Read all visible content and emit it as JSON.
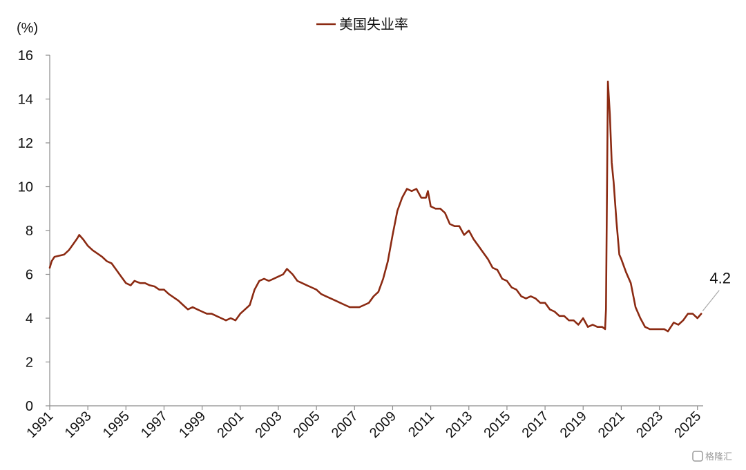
{
  "chart_data": {
    "type": "line",
    "y_unit_label": "(%)",
    "ylim": [
      0,
      16
    ],
    "y_ticks": [
      0,
      2,
      4,
      6,
      8,
      10,
      12,
      14,
      16
    ],
    "xlim": [
      1991,
      2025.3
    ],
    "x_tick_labels": [
      "1991",
      "1993",
      "1995",
      "1997",
      "1999",
      "2001",
      "2003",
      "2005",
      "2007",
      "2009",
      "2011",
      "2013",
      "2015",
      "2017",
      "2019",
      "2021",
      "2023",
      "2025"
    ],
    "legend_position": "top-center",
    "grid": false,
    "series": [
      {
        "name": "美国失业率",
        "color": "#8B2A12",
        "points": [
          [
            1991.0,
            6.3
          ],
          [
            1991.1,
            6.6
          ],
          [
            1991.25,
            6.8
          ],
          [
            1991.5,
            6.85
          ],
          [
            1991.75,
            6.9
          ],
          [
            1992.0,
            7.1
          ],
          [
            1992.25,
            7.4
          ],
          [
            1992.45,
            7.65
          ],
          [
            1992.55,
            7.8
          ],
          [
            1992.75,
            7.6
          ],
          [
            1993.0,
            7.3
          ],
          [
            1993.25,
            7.1
          ],
          [
            1993.5,
            6.95
          ],
          [
            1993.75,
            6.8
          ],
          [
            1994.0,
            6.6
          ],
          [
            1994.25,
            6.5
          ],
          [
            1994.5,
            6.2
          ],
          [
            1994.75,
            5.9
          ],
          [
            1995.0,
            5.6
          ],
          [
            1995.25,
            5.5
          ],
          [
            1995.45,
            5.7
          ],
          [
            1995.75,
            5.6
          ],
          [
            1996.0,
            5.6
          ],
          [
            1996.25,
            5.5
          ],
          [
            1996.5,
            5.45
          ],
          [
            1996.75,
            5.3
          ],
          [
            1997.0,
            5.3
          ],
          [
            1997.25,
            5.1
          ],
          [
            1997.5,
            4.95
          ],
          [
            1997.75,
            4.8
          ],
          [
            1998.0,
            4.6
          ],
          [
            1998.25,
            4.4
          ],
          [
            1998.5,
            4.5
          ],
          [
            1998.75,
            4.4
          ],
          [
            1999.0,
            4.3
          ],
          [
            1999.25,
            4.2
          ],
          [
            1999.5,
            4.2
          ],
          [
            1999.75,
            4.1
          ],
          [
            2000.0,
            4.0
          ],
          [
            2000.25,
            3.9
          ],
          [
            2000.5,
            4.0
          ],
          [
            2000.75,
            3.9
          ],
          [
            2001.0,
            4.2
          ],
          [
            2001.25,
            4.4
          ],
          [
            2001.5,
            4.6
          ],
          [
            2001.75,
            5.3
          ],
          [
            2002.0,
            5.7
          ],
          [
            2002.25,
            5.8
          ],
          [
            2002.5,
            5.7
          ],
          [
            2002.75,
            5.8
          ],
          [
            2003.0,
            5.9
          ],
          [
            2003.25,
            6.0
          ],
          [
            2003.45,
            6.25
          ],
          [
            2003.75,
            6.0
          ],
          [
            2004.0,
            5.7
          ],
          [
            2004.25,
            5.6
          ],
          [
            2004.5,
            5.5
          ],
          [
            2004.75,
            5.4
          ],
          [
            2005.0,
            5.3
          ],
          [
            2005.25,
            5.1
          ],
          [
            2005.5,
            5.0
          ],
          [
            2005.75,
            4.9
          ],
          [
            2006.0,
            4.8
          ],
          [
            2006.25,
            4.7
          ],
          [
            2006.5,
            4.6
          ],
          [
            2006.75,
            4.5
          ],
          [
            2007.0,
            4.5
          ],
          [
            2007.25,
            4.5
          ],
          [
            2007.5,
            4.6
          ],
          [
            2007.75,
            4.7
          ],
          [
            2008.0,
            5.0
          ],
          [
            2008.25,
            5.2
          ],
          [
            2008.5,
            5.8
          ],
          [
            2008.75,
            6.6
          ],
          [
            2009.0,
            7.8
          ],
          [
            2009.25,
            8.9
          ],
          [
            2009.5,
            9.5
          ],
          [
            2009.75,
            9.9
          ],
          [
            2010.0,
            9.8
          ],
          [
            2010.25,
            9.9
          ],
          [
            2010.5,
            9.5
          ],
          [
            2010.75,
            9.5
          ],
          [
            2010.85,
            9.8
          ],
          [
            2011.0,
            9.1
          ],
          [
            2011.25,
            9.0
          ],
          [
            2011.5,
            9.0
          ],
          [
            2011.75,
            8.8
          ],
          [
            2012.0,
            8.3
          ],
          [
            2012.25,
            8.2
          ],
          [
            2012.5,
            8.2
          ],
          [
            2012.75,
            7.8
          ],
          [
            2013.0,
            8.0
          ],
          [
            2013.25,
            7.6
          ],
          [
            2013.5,
            7.3
          ],
          [
            2013.75,
            7.0
          ],
          [
            2014.0,
            6.7
          ],
          [
            2014.25,
            6.3
          ],
          [
            2014.5,
            6.2
          ],
          [
            2014.75,
            5.8
          ],
          [
            2015.0,
            5.7
          ],
          [
            2015.25,
            5.4
          ],
          [
            2015.5,
            5.3
          ],
          [
            2015.75,
            5.0
          ],
          [
            2016.0,
            4.9
          ],
          [
            2016.25,
            5.0
          ],
          [
            2016.5,
            4.9
          ],
          [
            2016.75,
            4.7
          ],
          [
            2017.0,
            4.7
          ],
          [
            2017.25,
            4.4
          ],
          [
            2017.5,
            4.3
          ],
          [
            2017.75,
            4.1
          ],
          [
            2018.0,
            4.1
          ],
          [
            2018.25,
            3.9
          ],
          [
            2018.5,
            3.9
          ],
          [
            2018.75,
            3.7
          ],
          [
            2019.0,
            4.0
          ],
          [
            2019.25,
            3.6
          ],
          [
            2019.5,
            3.7
          ],
          [
            2019.75,
            3.6
          ],
          [
            2020.0,
            3.6
          ],
          [
            2020.15,
            3.5
          ],
          [
            2020.2,
            4.4
          ],
          [
            2020.3,
            14.8
          ],
          [
            2020.4,
            13.3
          ],
          [
            2020.5,
            11.1
          ],
          [
            2020.6,
            10.2
          ],
          [
            2020.75,
            8.4
          ],
          [
            2020.9,
            6.9
          ],
          [
            2021.0,
            6.7
          ],
          [
            2021.25,
            6.1
          ],
          [
            2021.5,
            5.6
          ],
          [
            2021.75,
            4.5
          ],
          [
            2022.0,
            4.0
          ],
          [
            2022.25,
            3.6
          ],
          [
            2022.5,
            3.5
          ],
          [
            2022.75,
            3.5
          ],
          [
            2023.0,
            3.5
          ],
          [
            2023.25,
            3.5
          ],
          [
            2023.45,
            3.4
          ],
          [
            2023.75,
            3.8
          ],
          [
            2024.0,
            3.7
          ],
          [
            2024.25,
            3.9
          ],
          [
            2024.5,
            4.2
          ],
          [
            2024.75,
            4.2
          ],
          [
            2025.0,
            4.0
          ],
          [
            2025.2,
            4.2
          ]
        ]
      }
    ],
    "annotations": [
      {
        "text": "4.2",
        "x": 2025.2,
        "y": 4.2
      }
    ]
  },
  "watermark": {
    "text": "格隆汇"
  }
}
